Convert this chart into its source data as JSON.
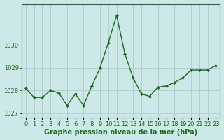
{
  "x": [
    0,
    1,
    2,
    3,
    4,
    5,
    6,
    7,
    8,
    9,
    10,
    11,
    12,
    13,
    14,
    15,
    16,
    17,
    18,
    19,
    20,
    21,
    22,
    23
  ],
  "y": [
    1028.1,
    1027.7,
    1027.7,
    1028.0,
    1027.9,
    1027.35,
    1027.85,
    1027.35,
    1028.2,
    1029.0,
    1030.1,
    1031.3,
    1029.6,
    1028.55,
    1027.85,
    1027.75,
    1028.15,
    1028.2,
    1028.35,
    1028.55,
    1028.9,
    1028.9,
    1028.9,
    1029.1
  ],
  "line_color": "#1a6b1a",
  "marker": "D",
  "marker_size": 2.0,
  "line_width": 1.0,
  "bg_color": "#cce8e8",
  "grid_color": "#aacccc",
  "xlabel": "Graphe pression niveau de la mer (hPa)",
  "xlabel_fontsize": 7,
  "yticks": [
    1027,
    1028,
    1029,
    1030
  ],
  "ylim": [
    1026.8,
    1031.8
  ],
  "xlim": [
    -0.5,
    23.5
  ],
  "xtick_labels": [
    "0",
    "1",
    "2",
    "3",
    "4",
    "5",
    "6",
    "7",
    "8",
    "9",
    "10",
    "11",
    "12",
    "13",
    "14",
    "15",
    "16",
    "17",
    "18",
    "19",
    "20",
    "21",
    "22",
    "23"
  ],
  "tick_fontsize": 6,
  "spine_color": "#336633"
}
